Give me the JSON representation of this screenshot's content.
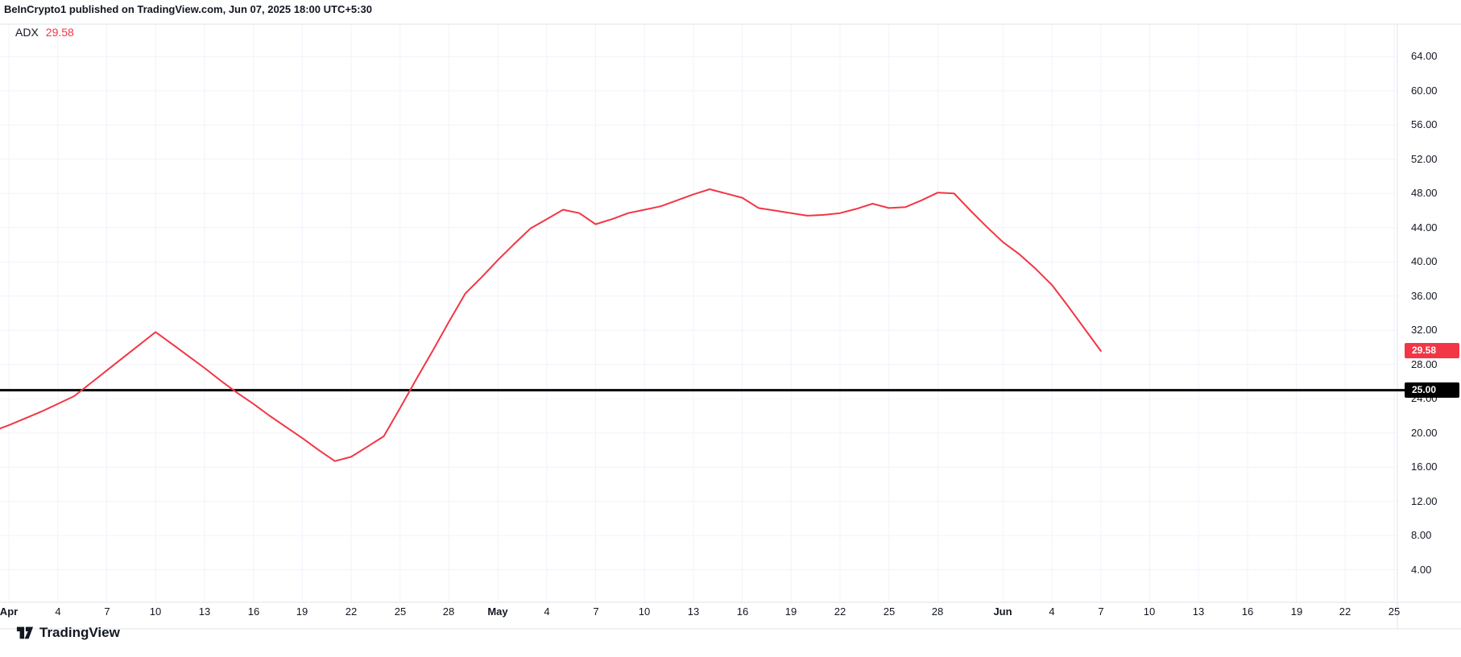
{
  "header": {
    "attribution": "BeInCrypto1 published on TradingView.com, Jun 07, 2025 18:00 UTC+5:30"
  },
  "legend": {
    "indicator": "ADX",
    "value": "29.58"
  },
  "footer": {
    "logo_text": "TradingView"
  },
  "colors": {
    "line": "#f23645",
    "threshold": "#000000",
    "grid": "#f0f3fa",
    "border": "#e0e3eb",
    "text": "#131722",
    "badge_red": "#f23645",
    "badge_black": "#000000",
    "badge_text": "#ffffff"
  },
  "chart_data": {
    "type": "line",
    "title": "ADX",
    "x_unit": "days since Apr 1, 2025 (Mar 31 = -1)",
    "start_date": "Mar 31",
    "end_date": "Jun 7",
    "ylim": [
      0.2,
      67.8
    ],
    "xlim_days": [
      -0.55,
      85.2
    ],
    "grid": true,
    "legend_position": "top-left",
    "series": [
      {
        "name": "ADX",
        "color": "#f23645",
        "last_value": 29.58,
        "points": [
          [
            -1,
            20.2
          ],
          [
            0,
            20.9
          ],
          [
            1,
            21.7
          ],
          [
            2,
            22.5
          ],
          [
            3,
            23.4
          ],
          [
            4,
            24.3
          ],
          [
            5,
            25.8
          ],
          [
            6,
            27.3
          ],
          [
            7,
            28.8
          ],
          [
            8,
            30.3
          ],
          [
            9,
            31.8
          ],
          [
            10,
            30.4
          ],
          [
            11,
            29.0
          ],
          [
            12,
            27.6
          ],
          [
            13,
            26.1
          ],
          [
            14,
            24.7
          ],
          [
            15,
            23.4
          ],
          [
            16,
            22.0
          ],
          [
            17,
            20.7
          ],
          [
            18,
            19.4
          ],
          [
            19,
            18.0
          ],
          [
            20,
            16.7
          ],
          [
            21,
            17.2
          ],
          [
            22,
            18.4
          ],
          [
            23,
            19.6
          ],
          [
            24,
            22.9
          ],
          [
            25,
            26.3
          ],
          [
            26,
            29.6
          ],
          [
            27,
            33.0
          ],
          [
            28,
            36.3
          ],
          [
            29,
            38.2
          ],
          [
            30,
            40.2
          ],
          [
            31,
            42.1
          ],
          [
            32,
            43.9
          ],
          [
            33,
            45.0
          ],
          [
            34,
            46.1
          ],
          [
            35,
            45.7
          ],
          [
            36,
            44.4
          ],
          [
            37,
            45.0
          ],
          [
            38,
            45.7
          ],
          [
            39,
            46.1
          ],
          [
            40,
            46.5
          ],
          [
            41,
            47.2
          ],
          [
            42,
            47.9
          ],
          [
            43,
            48.5
          ],
          [
            44,
            48.0
          ],
          [
            45,
            47.5
          ],
          [
            46,
            46.3
          ],
          [
            47,
            46.0
          ],
          [
            48,
            45.7
          ],
          [
            49,
            45.4
          ],
          [
            50,
            45.5
          ],
          [
            51,
            45.7
          ],
          [
            52,
            46.2
          ],
          [
            53,
            46.8
          ],
          [
            54,
            46.3
          ],
          [
            55,
            46.4
          ],
          [
            56,
            47.2
          ],
          [
            57,
            48.1
          ],
          [
            58,
            48.0
          ],
          [
            59,
            46.0
          ],
          [
            60,
            44.1
          ],
          [
            61,
            42.3
          ],
          [
            62,
            40.9
          ],
          [
            63,
            39.2
          ],
          [
            64,
            37.3
          ],
          [
            65,
            34.8
          ],
          [
            66,
            32.2
          ],
          [
            67,
            29.58
          ]
        ]
      }
    ],
    "threshold_line": {
      "value": 25,
      "label": "25.00",
      "color": "#000000"
    },
    "last_value_badge": {
      "value": 29.58,
      "label": "29.58",
      "color": "#f23645"
    },
    "y_ticks": [
      {
        "value": 64,
        "label": "64.00"
      },
      {
        "value": 60,
        "label": "60.00"
      },
      {
        "value": 56,
        "label": "56.00"
      },
      {
        "value": 52,
        "label": "52.00"
      },
      {
        "value": 48,
        "label": "48.00"
      },
      {
        "value": 44,
        "label": "44.00"
      },
      {
        "value": 40,
        "label": "40.00"
      },
      {
        "value": 36,
        "label": "36.00"
      },
      {
        "value": 32,
        "label": "32.00"
      },
      {
        "value": 28,
        "label": "28.00"
      },
      {
        "value": 24,
        "label": "24.00"
      },
      {
        "value": 20,
        "label": "20.00"
      },
      {
        "value": 16,
        "label": "16.00"
      },
      {
        "value": 12,
        "label": "12.00"
      },
      {
        "value": 8,
        "label": "8.00"
      },
      {
        "value": 4,
        "label": "4.00"
      }
    ],
    "x_ticks": [
      {
        "d": 0,
        "label": "Apr",
        "month": true
      },
      {
        "d": 3,
        "label": "4"
      },
      {
        "d": 6,
        "label": "7"
      },
      {
        "d": 9,
        "label": "10"
      },
      {
        "d": 12,
        "label": "13"
      },
      {
        "d": 15,
        "label": "16"
      },
      {
        "d": 18,
        "label": "19"
      },
      {
        "d": 21,
        "label": "22"
      },
      {
        "d": 24,
        "label": "25"
      },
      {
        "d": 27,
        "label": "28"
      },
      {
        "d": 30,
        "label": "May",
        "month": true
      },
      {
        "d": 33,
        "label": "4"
      },
      {
        "d": 36,
        "label": "7"
      },
      {
        "d": 39,
        "label": "10"
      },
      {
        "d": 42,
        "label": "13"
      },
      {
        "d": 45,
        "label": "16"
      },
      {
        "d": 48,
        "label": "19"
      },
      {
        "d": 51,
        "label": "22"
      },
      {
        "d": 54,
        "label": "25"
      },
      {
        "d": 57,
        "label": "28"
      },
      {
        "d": 61,
        "label": "Jun",
        "month": true
      },
      {
        "d": 64,
        "label": "4"
      },
      {
        "d": 67,
        "label": "7"
      },
      {
        "d": 70,
        "label": "10"
      },
      {
        "d": 73,
        "label": "13"
      },
      {
        "d": 76,
        "label": "16"
      },
      {
        "d": 79,
        "label": "19"
      },
      {
        "d": 82,
        "label": "22"
      },
      {
        "d": 85,
        "label": "25"
      }
    ]
  }
}
